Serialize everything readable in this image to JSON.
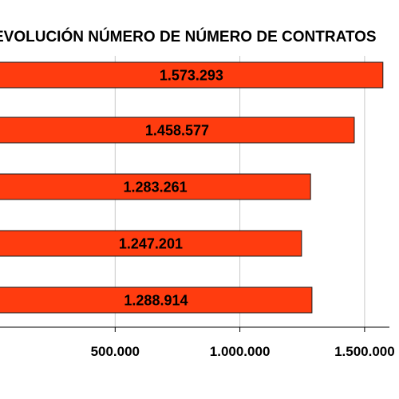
{
  "chart_data": {
    "type": "bar",
    "orientation": "horizontal",
    "title": "EVOLUCIÓN NÚMERO DE NÚMERO DE CONTRATOS",
    "xlabel": "",
    "ylabel": "",
    "values": [
      1573293,
      1458577,
      1283261,
      1247201,
      1288914
    ],
    "value_labels": [
      "1.573.293",
      "1.458.577",
      "1.283.261",
      "1.247.201",
      "1.288.914"
    ],
    "xlim": [
      0,
      1600000
    ],
    "xticks": [
      500000,
      1000000,
      1500000
    ],
    "xtick_labels": [
      "500.000",
      "1.000.000",
      "1.500.000"
    ],
    "grid": true,
    "legend": "none",
    "colors": {
      "bar_fill": "#FF3C0F",
      "bar_stroke": "#1a1a1a",
      "grid": "#c8c8c8",
      "axis": "#000000"
    }
  }
}
